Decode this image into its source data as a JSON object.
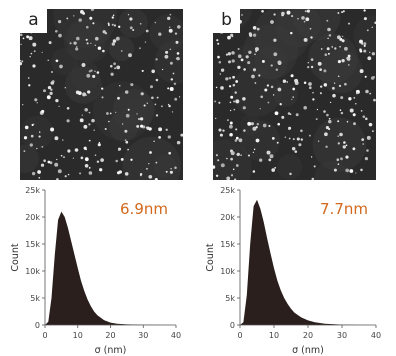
{
  "panels": [
    {
      "label": "a",
      "annotation": "6.9nm"
    },
    {
      "label": "b",
      "annotation": "7.7nm"
    }
  ],
  "chart_data": [
    {
      "type": "area",
      "xlabel": "σ (nm)",
      "ylabel": "Count",
      "annotation": "6.9nm",
      "xlim": [
        0,
        40
      ],
      "ylim": [
        0,
        25000
      ],
      "xticks": [
        0,
        10,
        20,
        30,
        40
      ],
      "yticks": [
        0,
        5000,
        10000,
        15000,
        20000,
        25000
      ],
      "ytick_labels": [
        "0",
        "5k",
        "10k",
        "15k",
        "20k",
        "25k"
      ],
      "x": [
        1,
        2,
        3,
        4,
        5,
        6,
        7,
        8,
        9,
        10,
        11,
        12,
        13,
        14,
        15,
        16,
        18,
        20,
        22,
        25,
        30,
        35,
        40
      ],
      "values": [
        600,
        5000,
        13000,
        19500,
        21000,
        20000,
        18000,
        15500,
        13000,
        10500,
        8200,
        6300,
        4700,
        3500,
        2500,
        1800,
        900,
        450,
        250,
        120,
        40,
        10,
        0
      ]
    },
    {
      "type": "area",
      "xlabel": "σ (nm)",
      "ylabel": "Count",
      "annotation": "7.7nm",
      "xlim": [
        0,
        40
      ],
      "ylim": [
        0,
        25000
      ],
      "xticks": [
        0,
        10,
        20,
        30,
        40
      ],
      "yticks": [
        0,
        5000,
        10000,
        15000,
        20000,
        25000
      ],
      "ytick_labels": [
        "0",
        "5k",
        "10k",
        "15k",
        "20k",
        "25k"
      ],
      "x": [
        1,
        2,
        3,
        4,
        5,
        6,
        7,
        8,
        9,
        10,
        11,
        12,
        13,
        14,
        15,
        16,
        18,
        20,
        22,
        25,
        30,
        35,
        40
      ],
      "values": [
        500,
        5500,
        15000,
        22000,
        23200,
        21500,
        19000,
        16000,
        13200,
        10500,
        8200,
        6400,
        5000,
        3900,
        3000,
        2300,
        1400,
        850,
        500,
        250,
        80,
        20,
        0
      ]
    }
  ],
  "colors": {
    "histogram_fill": "#2a1f1c",
    "annotation": "#d2691e",
    "axis": "#555555",
    "micrograph_bg": "#2a2a2a"
  }
}
